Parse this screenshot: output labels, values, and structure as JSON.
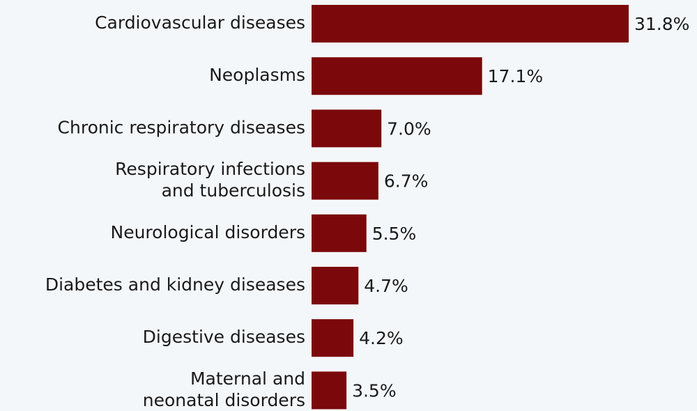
{
  "chart_data": {
    "type": "hbar",
    "categories": [
      "Cardiovascular diseases",
      "Neoplasms",
      "Chronic respiratory diseases",
      "Respiratory infections\nand tuberculosis",
      "Neurological disorders",
      "Diabetes and kidney diseases",
      "Digestive diseases",
      "Maternal and\nneonatal disorders"
    ],
    "values": [
      31.8,
      17.1,
      7.0,
      6.7,
      5.5,
      4.7,
      4.2,
      3.5
    ],
    "value_labels": [
      "31.8%",
      "17.1%",
      "7.0%",
      "6.7%",
      "5.5%",
      "4.7%",
      "4.2%",
      "3.5%"
    ],
    "color": "#7b080b"
  }
}
